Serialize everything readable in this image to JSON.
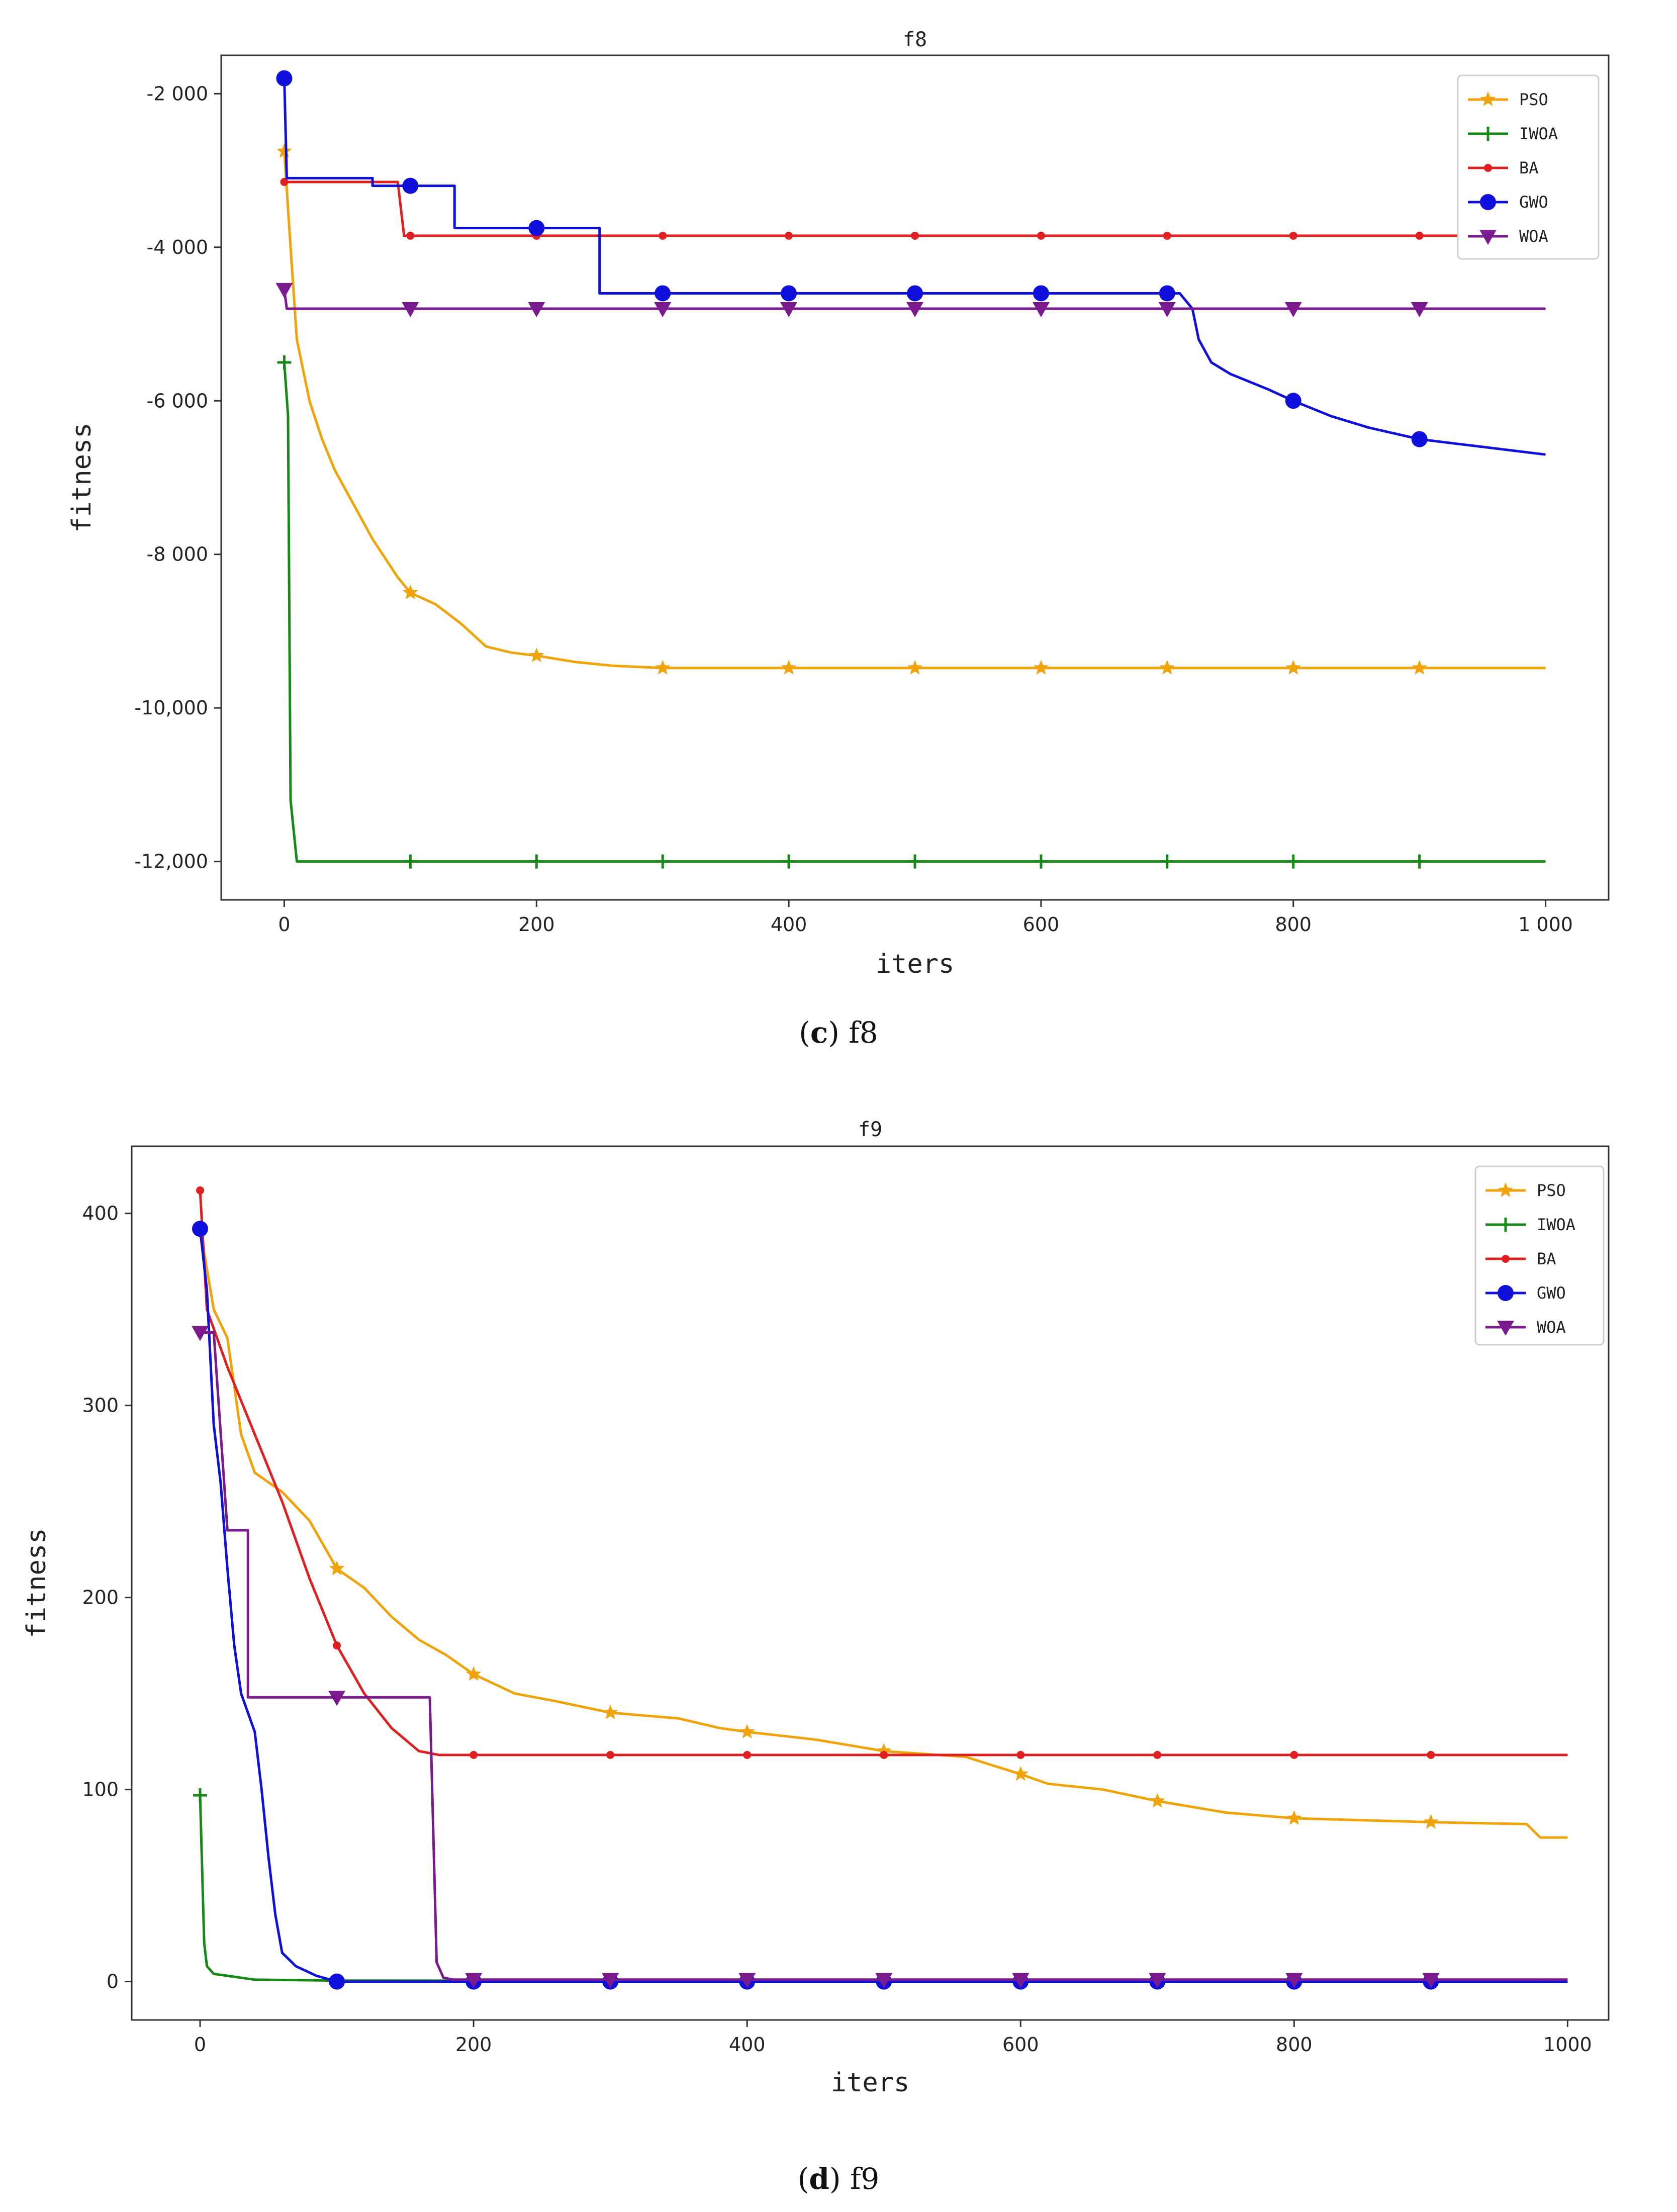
{
  "chart_data": [
    {
      "type": "line",
      "panel": "c",
      "title": "f8",
      "xlabel": "iters",
      "ylabel": "fitness",
      "xlim": [
        -50,
        1050
      ],
      "ylim": [
        -12500,
        -1500
      ],
      "xticks": [
        0,
        200,
        400,
        600,
        800,
        1000
      ],
      "xtick_labels": [
        "0",
        "200",
        "400",
        "600",
        "800",
        "1 000"
      ],
      "yticks": [
        -2000,
        -4000,
        -6000,
        -8000,
        -10000,
        -12000
      ],
      "ytick_labels": [
        "-2 000",
        "-4 000",
        "-6 000",
        "-8 000",
        "-10,000",
        "-12,000"
      ],
      "legend_position": "top-right",
      "series": [
        {
          "name": "PSO",
          "color": "#f0a30a",
          "marker": "star",
          "points": [
            [
              0,
              -2750
            ],
            [
              5,
              -4000
            ],
            [
              10,
              -5200
            ],
            [
              20,
              -6000
            ],
            [
              30,
              -6500
            ],
            [
              40,
              -6900
            ],
            [
              50,
              -7200
            ],
            [
              60,
              -7500
            ],
            [
              70,
              -7800
            ],
            [
              80,
              -8050
            ],
            [
              90,
              -8300
            ],
            [
              100,
              -8500
            ],
            [
              120,
              -8650
            ],
            [
              140,
              -8900
            ],
            [
              160,
              -9200
            ],
            [
              180,
              -9280
            ],
            [
              200,
              -9320
            ],
            [
              230,
              -9400
            ],
            [
              260,
              -9450
            ],
            [
              300,
              -9480
            ],
            [
              1000,
              -9480
            ]
          ],
          "markers_x": [
            0,
            100,
            200,
            300,
            400,
            500,
            600,
            700,
            800,
            900
          ]
        },
        {
          "name": "IWOA",
          "color": "#168a16",
          "marker": "plus",
          "points": [
            [
              0,
              -5500
            ],
            [
              3,
              -6200
            ],
            [
              5,
              -11200
            ],
            [
              10,
              -12000
            ],
            [
              1000,
              -12000
            ]
          ],
          "markers_x": [
            0,
            100,
            200,
            300,
            400,
            500,
            600,
            700,
            800,
            900
          ]
        },
        {
          "name": "BA",
          "color": "#e02020",
          "marker": "dot",
          "points": [
            [
              0,
              -3150
            ],
            [
              90,
              -3150
            ],
            [
              95,
              -3850
            ],
            [
              1000,
              -3850
            ]
          ],
          "markers_x": [
            0,
            100,
            200,
            300,
            400,
            500,
            600,
            700,
            800,
            900
          ]
        },
        {
          "name": "GWO",
          "color": "#1010dd",
          "marker": "circle",
          "points": [
            [
              0,
              -1800
            ],
            [
              2,
              -3100
            ],
            [
              70,
              -3100
            ],
            [
              70,
              -3200
            ],
            [
              135,
              -3200
            ],
            [
              135,
              -3750
            ],
            [
              250,
              -3750
            ],
            [
              250,
              -4600
            ],
            [
              710,
              -4600
            ],
            [
              720,
              -4800
            ],
            [
              725,
              -5200
            ],
            [
              735,
              -5500
            ],
            [
              750,
              -5650
            ],
            [
              780,
              -5850
            ],
            [
              800,
              -6000
            ],
            [
              830,
              -6200
            ],
            [
              860,
              -6350
            ],
            [
              900,
              -6500
            ],
            [
              950,
              -6600
            ],
            [
              1000,
              -6700
            ]
          ],
          "markers_x": [
            0,
            100,
            200,
            300,
            400,
            500,
            600,
            700,
            800,
            900
          ]
        },
        {
          "name": "WOA",
          "color": "#7b1a8e",
          "marker": "triangle-down",
          "points": [
            [
              0,
              -4550
            ],
            [
              2,
              -4800
            ],
            [
              1000,
              -4800
            ]
          ],
          "markers_x": [
            0,
            100,
            200,
            300,
            400,
            500,
            600,
            700,
            800,
            900
          ]
        }
      ]
    },
    {
      "type": "line",
      "panel": "d",
      "title": "f9",
      "xlabel": "iters",
      "ylabel": "fitness",
      "xlim": [
        -50,
        1030
      ],
      "ylim": [
        -20,
        435
      ],
      "xticks": [
        0,
        200,
        400,
        600,
        800,
        1000
      ],
      "xtick_labels": [
        "0",
        "200",
        "400",
        "600",
        "800",
        "1000"
      ],
      "yticks": [
        0,
        100,
        200,
        300,
        400
      ],
      "ytick_labels": [
        "0",
        "100",
        "200",
        "300",
        "400"
      ],
      "legend_position": "top-right",
      "series": [
        {
          "name": "PSO",
          "color": "#f0a30a",
          "marker": "star",
          "points": [
            [
              0,
              392
            ],
            [
              10,
              350
            ],
            [
              20,
              335
            ],
            [
              30,
              285
            ],
            [
              40,
              265
            ],
            [
              60,
              255
            ],
            [
              80,
              240
            ],
            [
              100,
              215
            ],
            [
              120,
              205
            ],
            [
              140,
              190
            ],
            [
              160,
              178
            ],
            [
              180,
              170
            ],
            [
              200,
              160
            ],
            [
              230,
              150
            ],
            [
              260,
              146
            ],
            [
              300,
              140
            ],
            [
              350,
              137
            ],
            [
              380,
              132
            ],
            [
              400,
              130
            ],
            [
              450,
              126
            ],
            [
              500,
              120
            ],
            [
              560,
              117
            ],
            [
              600,
              108
            ],
            [
              620,
              103
            ],
            [
              660,
              100
            ],
            [
              700,
              94
            ],
            [
              750,
              88
            ],
            [
              800,
              85
            ],
            [
              900,
              83
            ],
            [
              970,
              82
            ],
            [
              980,
              75
            ],
            [
              1000,
              75
            ]
          ],
          "markers_x": [
            0,
            100,
            200,
            300,
            400,
            500,
            600,
            700,
            800,
            900
          ]
        },
        {
          "name": "IWOA",
          "color": "#168a16",
          "marker": "plus",
          "points": [
            [
              0,
              97
            ],
            [
              3,
              20
            ],
            [
              5,
              8
            ],
            [
              10,
              4
            ],
            [
              20,
              3
            ],
            [
              30,
              2
            ],
            [
              40,
              1
            ],
            [
              100,
              0.5
            ],
            [
              1000,
              0
            ]
          ],
          "markers_x": [
            0
          ]
        },
        {
          "name": "BA",
          "color": "#e02020",
          "marker": "dot",
          "points": [
            [
              0,
              412
            ],
            [
              5,
              350
            ],
            [
              20,
              320
            ],
            [
              40,
              285
            ],
            [
              60,
              250
            ],
            [
              80,
              210
            ],
            [
              100,
              175
            ],
            [
              120,
              150
            ],
            [
              140,
              132
            ],
            [
              160,
              120
            ],
            [
              175,
              118
            ],
            [
              1000,
              118
            ]
          ],
          "markers_x": [
            0,
            100,
            200,
            300,
            400,
            500,
            600,
            700,
            800,
            900
          ]
        },
        {
          "name": "GWO",
          "color": "#1010dd",
          "marker": "circle",
          "points": [
            [
              0,
              392
            ],
            [
              5,
              360
            ],
            [
              10,
              290
            ],
            [
              15,
              260
            ],
            [
              20,
              215
            ],
            [
              25,
              175
            ],
            [
              30,
              150
            ],
            [
              40,
              130
            ],
            [
              45,
              100
            ],
            [
              50,
              65
            ],
            [
              55,
              35
            ],
            [
              60,
              15
            ],
            [
              70,
              8
            ],
            [
              85,
              3
            ],
            [
              100,
              0
            ],
            [
              1000,
              0
            ]
          ],
          "markers_x": [
            0,
            100,
            200,
            300,
            400,
            500,
            600,
            700,
            800,
            900
          ]
        },
        {
          "name": "WOA",
          "color": "#7b1a8e",
          "marker": "triangle-down",
          "points": [
            [
              0,
              338
            ],
            [
              10,
              338
            ],
            [
              20,
              235
            ],
            [
              35,
              235
            ],
            [
              35,
              148
            ],
            [
              168,
              148
            ],
            [
              173,
              10
            ],
            [
              178,
              2
            ],
            [
              185,
              1
            ],
            [
              1000,
              1
            ]
          ],
          "markers_x": [
            0,
            100,
            200,
            300,
            400,
            500,
            600,
            700,
            800,
            900
          ]
        }
      ]
    }
  ],
  "captions": {
    "c": {
      "letter": "c",
      "text": " f8"
    },
    "d": {
      "letter": "d",
      "text": " f9"
    }
  }
}
